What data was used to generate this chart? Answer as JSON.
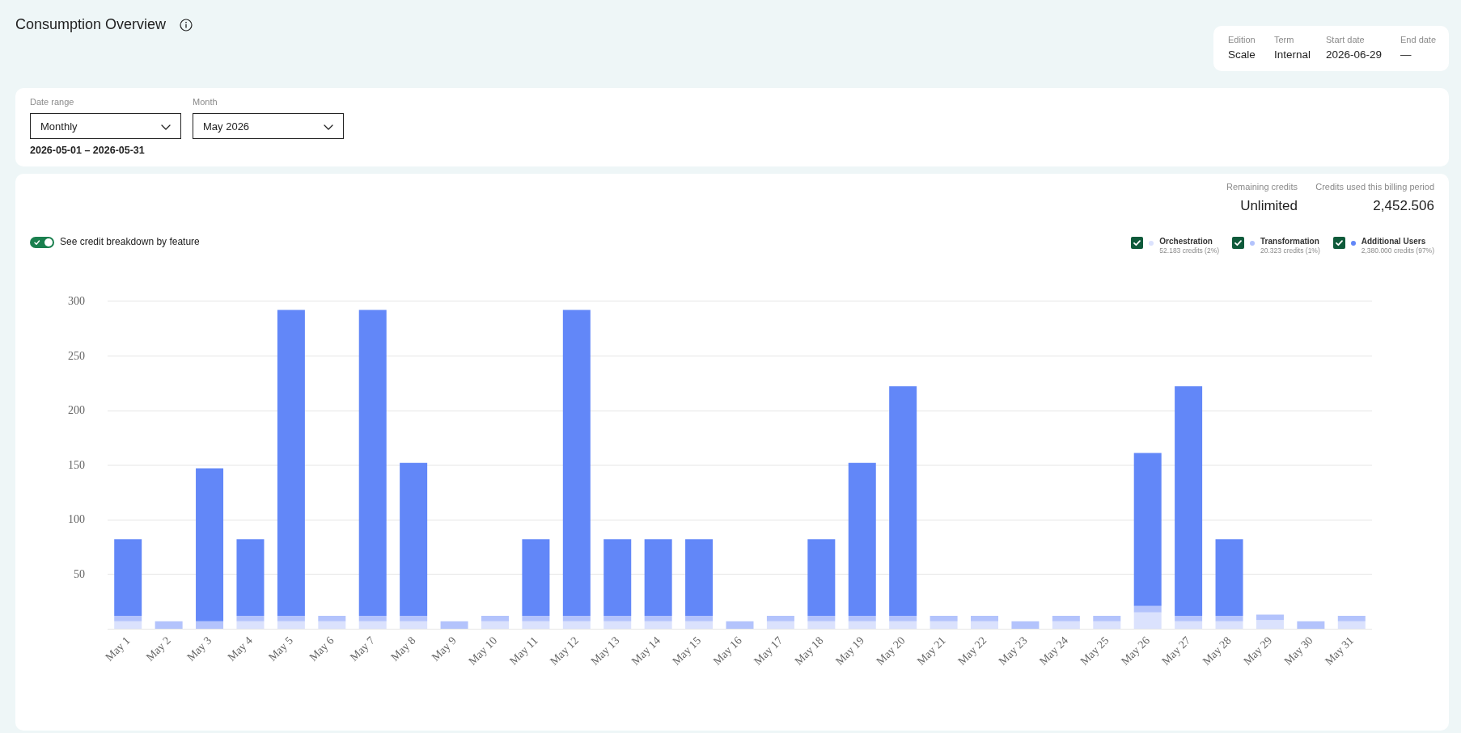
{
  "chart_data": {
    "type": "bar",
    "title": "Consumption Overview",
    "annotations": [
      "Edition",
      "Scale",
      "Term",
      "Internal",
      "Start date",
      "2026-06-29",
      "End date",
      "—",
      "Date range",
      "Monthly",
      "Month",
      "May 2026",
      "2026-05-01 – 2026-05-31",
      "Remaining credits",
      "Unlimited",
      "Credits used this billing period",
      "2,452.506",
      "See credit breakdown by feature",
      "52.183 credits (2%)",
      "20.323 credits (1%)",
      "2,380.000 credits (97%)"
    ],
    "categories": [
      "May 1",
      "May 2",
      "May 3",
      "May 4",
      "May 5",
      "May 6",
      "May 7",
      "May 8",
      "May 9",
      "May 10",
      "May 11",
      "May 12",
      "May 13",
      "May 14",
      "May 15",
      "May 16",
      "May 17",
      "May 18",
      "May 19",
      "May 20",
      "May 21",
      "May 22",
      "May 23",
      "May 24",
      "May 25",
      "May 26",
      "May 27",
      "May 28",
      "May 29",
      "May 30",
      "May 31"
    ],
    "series": [
      {
        "name": "Orchestration",
        "color": "#dbe2fd",
        "values": [
          7,
          null,
          null,
          7,
          7,
          7,
          7,
          7,
          null,
          7,
          7,
          7,
          7,
          7,
          7,
          null,
          7,
          7,
          7,
          7,
          7,
          7,
          null,
          7,
          7,
          15,
          7,
          7,
          8,
          null,
          7
        ]
      },
      {
        "name": "Transformation",
        "color": "#b3c3fc",
        "values": [
          5,
          7,
          7,
          5,
          5,
          5,
          5,
          5,
          7,
          5,
          5,
          5,
          5,
          5,
          5,
          7,
          5,
          5,
          5,
          5,
          5,
          5,
          7,
          5,
          5,
          6,
          5,
          5,
          5,
          7,
          5
        ]
      },
      {
        "name": "Additional Users",
        "color": "#6287f8",
        "values": [
          70,
          null,
          140,
          70,
          280,
          null,
          280,
          140,
          null,
          null,
          70,
          280,
          70,
          70,
          70,
          null,
          null,
          70,
          140,
          210,
          null,
          null,
          null,
          null,
          null,
          140,
          210,
          70,
          null,
          null,
          null
        ]
      }
    ],
    "stacked": true,
    "ylim": [
      0,
      300
    ],
    "yticks": [
      {
        "value": 0,
        "label": null
      },
      50,
      100,
      150,
      200,
      250,
      300
    ],
    "grid": "y",
    "legend": "top right"
  }
}
